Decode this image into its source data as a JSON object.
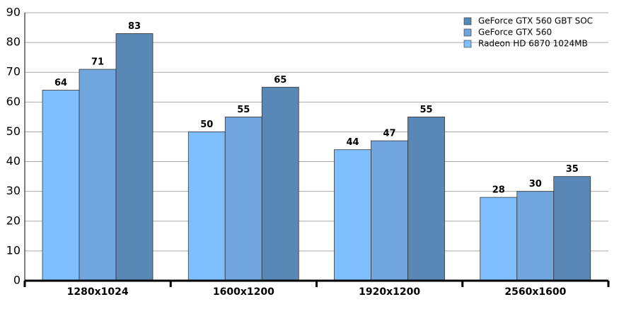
{
  "chart_data": {
    "type": "bar",
    "categories": [
      "1280x1024",
      "1600x1200",
      "1920x1200",
      "2560x1600"
    ],
    "series": [
      {
        "name": "Radeon HD 6870 1024MB",
        "color": "#80bfff",
        "values": [
          64,
          50,
          44,
          28
        ]
      },
      {
        "name": "GeForce GTX 560",
        "color": "#70a6dd",
        "values": [
          71,
          55,
          47,
          30
        ]
      },
      {
        "name": "GeForce GTX 560 GBT SOC",
        "color": "#5a88b6",
        "values": [
          83,
          65,
          55,
          35
        ]
      }
    ],
    "ylim": [
      0,
      90
    ],
    "yticks": [
      0,
      10,
      20,
      30,
      40,
      50,
      60,
      70,
      80,
      90
    ],
    "grid": true
  }
}
